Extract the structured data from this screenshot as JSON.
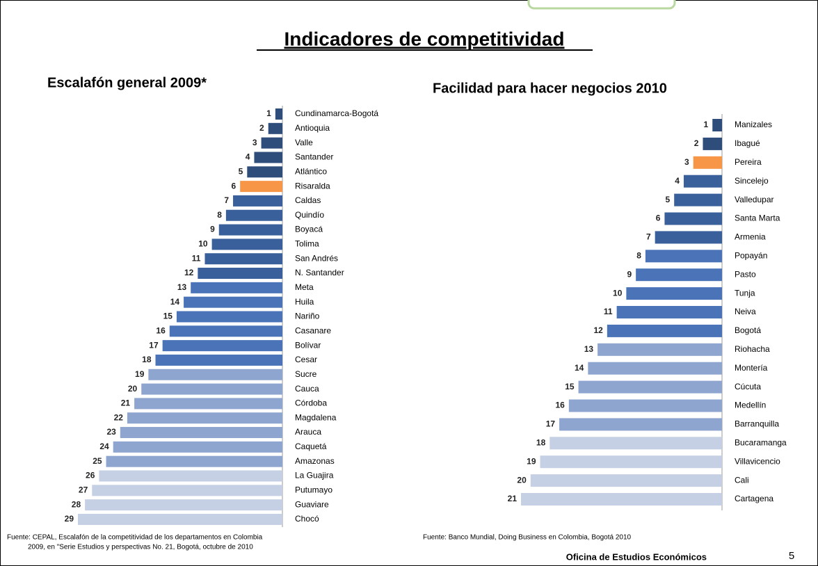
{
  "title": "Indicadores de competitividad",
  "chart_data": [
    {
      "type": "hbar-left",
      "title": "Escalafón general 2009*",
      "categories": [
        "Cundinamarca-Bogotá",
        "Antioquia",
        "Valle",
        "Santander",
        "Atlántico",
        "Risaralda",
        "Caldas",
        "Quindío",
        "Boyacá",
        "Tolima",
        "San Andrés",
        "N. Santander",
        "Meta",
        "Huila",
        "Nariño",
        "Casanare",
        "Bolívar",
        "Cesar",
        "Sucre",
        "Cauca",
        "Córdoba",
        "Magdalena",
        "Arauca",
        "Caquetá",
        "Amazonas",
        "La Guajira",
        "Putumayo",
        "Guaviare",
        "Chocó"
      ],
      "values": [
        1,
        2,
        3,
        4,
        5,
        6,
        7,
        8,
        9,
        10,
        11,
        12,
        13,
        14,
        15,
        16,
        17,
        18,
        19,
        20,
        21,
        22,
        23,
        24,
        25,
        26,
        27,
        28,
        29
      ],
      "colors": [
        "#2e4d7b",
        "#2e4d7b",
        "#2e4d7b",
        "#2e4d7b",
        "#2e4d7b",
        "#f79646",
        "#39609b",
        "#39609b",
        "#39609b",
        "#39609b",
        "#39609b",
        "#39609b",
        "#4a73b8",
        "#4a73b8",
        "#4a73b8",
        "#4a73b8",
        "#4a73b8",
        "#4a73b8",
        "#8ea5cf",
        "#8ea5cf",
        "#8ea5cf",
        "#8ea5cf",
        "#8ea5cf",
        "#8ea5cf",
        "#8ea5cf",
        "#c6d0e4",
        "#c6d0e4",
        "#c6d0e4",
        "#c6d0e4"
      ],
      "source": [
        "Fuente: CEPAL, Escalafón de la competitividad de los departamentos en Colombia",
        "2009, en \"Serie Estudios y perspectivas No. 21, Bogotá, octubre de 2010"
      ]
    },
    {
      "type": "hbar-left",
      "title": "Facilidad para hacer negocios 2010",
      "categories": [
        "Manizales",
        "Ibagué",
        "Pereira",
        "Sincelejo",
        "Valledupar",
        "Santa Marta",
        "Armenia",
        "Popayán",
        "Pasto",
        "Tunja",
        "Neiva",
        "Bogotá",
        "Riohacha",
        "Montería",
        "Cúcuta",
        "Medellín",
        "Barranquilla",
        "Bucaramanga",
        "Villavicencio",
        "Cali",
        "Cartagena"
      ],
      "values": [
        1,
        2,
        3,
        4,
        5,
        6,
        7,
        8,
        9,
        10,
        11,
        12,
        13,
        14,
        15,
        16,
        17,
        18,
        19,
        20,
        21
      ],
      "colors": [
        "#2e4d7b",
        "#2e4d7b",
        "#f79646",
        "#39609b",
        "#39609b",
        "#39609b",
        "#39609b",
        "#4a73b8",
        "#4a73b8",
        "#4a73b8",
        "#4a73b8",
        "#4a73b8",
        "#8ea5cf",
        "#8ea5cf",
        "#8ea5cf",
        "#8ea5cf",
        "#8ea5cf",
        "#c6d0e4",
        "#c6d0e4",
        "#c6d0e4",
        "#c6d0e4"
      ],
      "source": [
        "Fuente: Banco Mundial, Doing Business en Colombia, Bogotá 2010"
      ]
    }
  ],
  "footer": "Oficina de Estudios Económicos",
  "page_number": "5"
}
